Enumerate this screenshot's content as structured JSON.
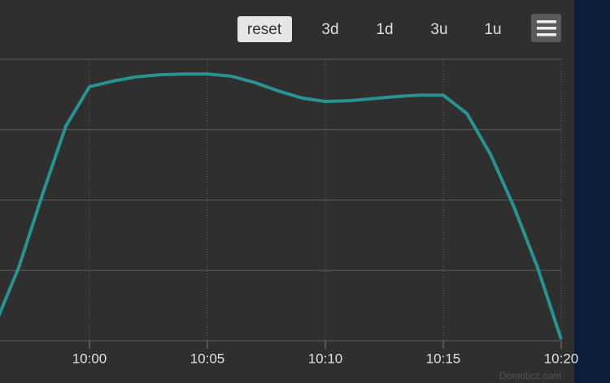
{
  "chart_data": {
    "type": "line",
    "x": [
      "09:56",
      "09:57",
      "09:58",
      "09:59",
      "10:00",
      "10:01",
      "10:02",
      "10:03",
      "10:04",
      "10:05",
      "10:06",
      "10:07",
      "10:08",
      "10:09",
      "10:10",
      "10:11",
      "10:12",
      "10:13",
      "10:14",
      "10:15",
      "10:16",
      "10:17",
      "10:18",
      "10:19",
      "10:20"
    ],
    "series": [
      {
        "color": "#2a9290",
        "values": [
          0.23,
          1.04,
          2.07,
          3.05,
          3.61,
          3.69,
          3.75,
          3.78,
          3.79,
          3.79,
          3.76,
          3.67,
          3.55,
          3.45,
          3.4,
          3.41,
          3.44,
          3.47,
          3.49,
          3.49,
          3.23,
          2.65,
          1.9,
          1.04,
          0.02
        ]
      }
    ],
    "xlim": [
      "09:56",
      "10:20"
    ],
    "xticks": [
      "10:00",
      "10:05",
      "10:10",
      "10:15",
      "10:20"
    ],
    "ylim": [
      0,
      4
    ],
    "ygrid": [
      0,
      1,
      2,
      3,
      4
    ],
    "grid": true
  },
  "toolbar": {
    "buttons": [
      "reset",
      "3d",
      "1d",
      "3u",
      "1u"
    ]
  },
  "credit": "Domoticz.com"
}
